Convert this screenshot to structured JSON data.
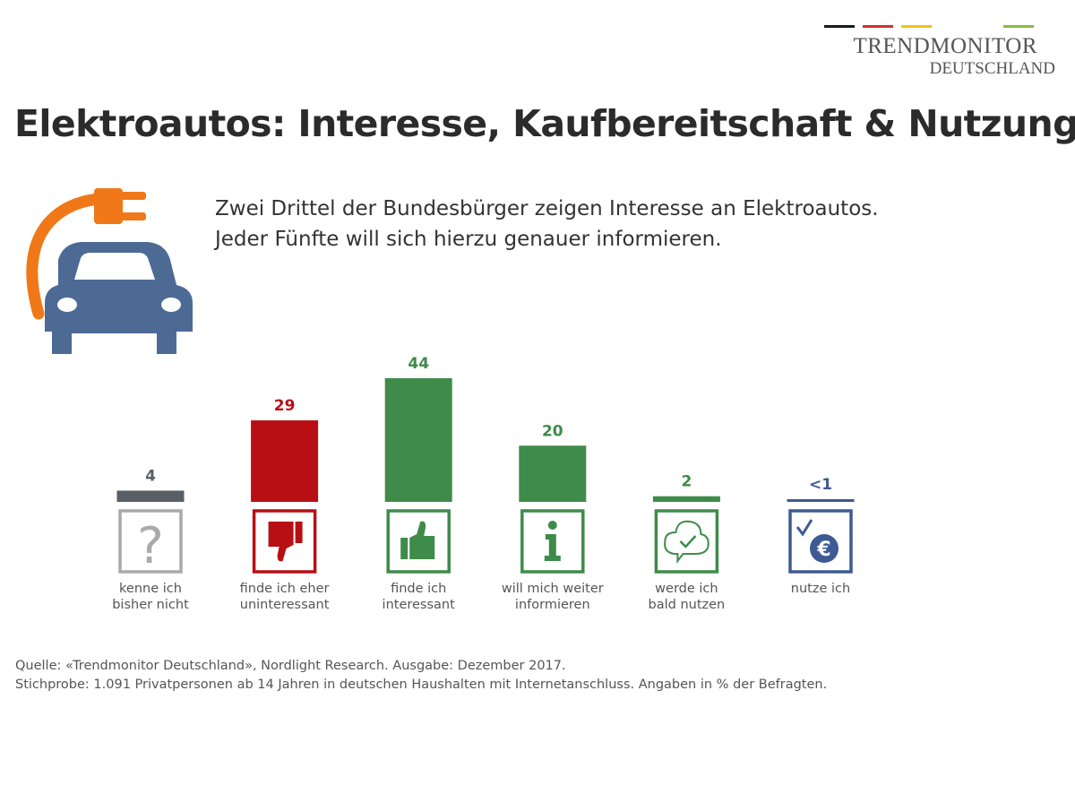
{
  "logo": {
    "line1": "TRENDMONITOR",
    "line2": "DEUTSCHLAND",
    "stripe_colors": [
      "#1a1a1a",
      "#d32f2f",
      "#f2c40f",
      "#8bbf3c"
    ]
  },
  "title": "Elektroautos: Interesse, Kaufbereitschaft & Nutzung",
  "subtitle": {
    "line1": "Zwei Drittel der Bundesbürger zeigen Interesse an Elektroautos.",
    "line2": "Jeder Fünfte will sich hierzu genauer informieren."
  },
  "header_icon": "electric-car-plug-icon",
  "chart_data": {
    "type": "bar",
    "categories": [
      "kenne ich bisher nicht",
      "finde ich eher uninteressant",
      "finde ich interessant",
      "will mich weiter informieren",
      "werde ich bald nutzen",
      "nutze ich"
    ],
    "category_lines": [
      [
        "kenne ich",
        "bisher nicht"
      ],
      [
        "finde ich eher",
        "uninteressant"
      ],
      [
        "finde ich",
        "interessant"
      ],
      [
        "will mich weiter",
        "informieren"
      ],
      [
        "werde ich",
        "bald nutzen"
      ],
      [
        "nutze ich",
        ""
      ]
    ],
    "values": [
      4,
      29,
      44,
      20,
      2,
      0.8
    ],
    "value_labels": [
      "4",
      "29",
      "44",
      "20",
      "2",
      "<1"
    ],
    "colors": [
      "#5a5f66",
      "#b80f14",
      "#3f8b4a",
      "#3f8b4a",
      "#3f8b4a",
      "#3e5a93"
    ],
    "label_colors": [
      "#5a5f66",
      "#b80f14",
      "#3f8b4a",
      "#3f8b4a",
      "#3f8b4a",
      "#3e5a93"
    ],
    "icon_border_colors": [
      "#a9a9a9",
      "#b80f14",
      "#3f8b4a",
      "#3f8b4a",
      "#3f8b4a",
      "#3e5a93"
    ],
    "icons": [
      "question-mark-icon",
      "thumbs-down-icon",
      "thumbs-up-icon",
      "info-icon",
      "cloud-check-icon",
      "check-euro-icon"
    ],
    "unit": "%",
    "title": "",
    "xlabel": "",
    "ylabel": "",
    "ylim": [
      0,
      44
    ],
    "grid": false
  },
  "source": {
    "line1": "Quelle: «Trendmonitor Deutschland»,  Nordlight Research. Ausgabe: Dezember 2017.",
    "line2": "Stichprobe: 1.091 Privatpersonen ab 14 Jahren in deutschen Haushalten mit Internetanschluss. Angaben in % der Befragten."
  }
}
